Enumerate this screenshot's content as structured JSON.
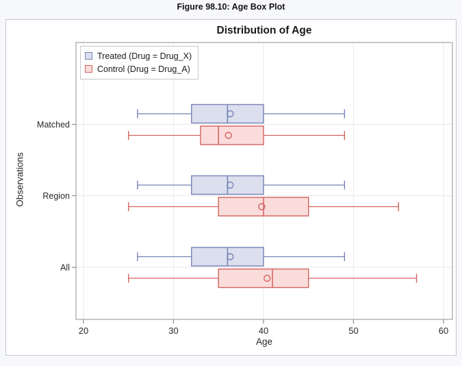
{
  "figure_title": "Figure 98.10: Age Box Plot",
  "chart_data": {
    "type": "boxplot",
    "orientation": "horizontal",
    "title": "Distribution of Age",
    "xlabel": "Age",
    "ylabel": "Observations",
    "x_ticks": [
      20,
      30,
      40,
      50,
      60
    ],
    "xlim": [
      19.2,
      61
    ],
    "grid": true,
    "legend_position": "inside-top-left",
    "categories": [
      "Matched",
      "Region",
      "All"
    ],
    "series": [
      {
        "id": "treated",
        "name": "Treated (Drug = Drug_X)",
        "stroke": "#7581b5",
        "fill": "#dcdfee",
        "boxes": [
          {
            "category": "Matched",
            "min": 26,
            "q1": 32,
            "median": 36,
            "q3": 40,
            "max": 49,
            "mean": 36.3
          },
          {
            "category": "Region",
            "min": 26,
            "q1": 32,
            "median": 36,
            "q3": 40,
            "max": 49,
            "mean": 36.3
          },
          {
            "category": "All",
            "min": 26,
            "q1": 32,
            "median": 36,
            "q3": 40,
            "max": 49,
            "mean": 36.3
          }
        ]
      },
      {
        "id": "control",
        "name": "Control (Drug = Drug_A)",
        "stroke": "#d2625e",
        "fill": "#fadcdb",
        "boxes": [
          {
            "category": "Matched",
            "min": 25,
            "q1": 33,
            "median": 35,
            "q3": 40,
            "max": 49,
            "mean": 36.1
          },
          {
            "category": "Region",
            "min": 25,
            "q1": 35,
            "median": 40,
            "q3": 45,
            "max": 55,
            "mean": 39.8
          },
          {
            "category": "All",
            "min": 25,
            "q1": 35,
            "median": 41,
            "q3": 45,
            "max": 57,
            "mean": 40.4
          }
        ]
      }
    ]
  }
}
